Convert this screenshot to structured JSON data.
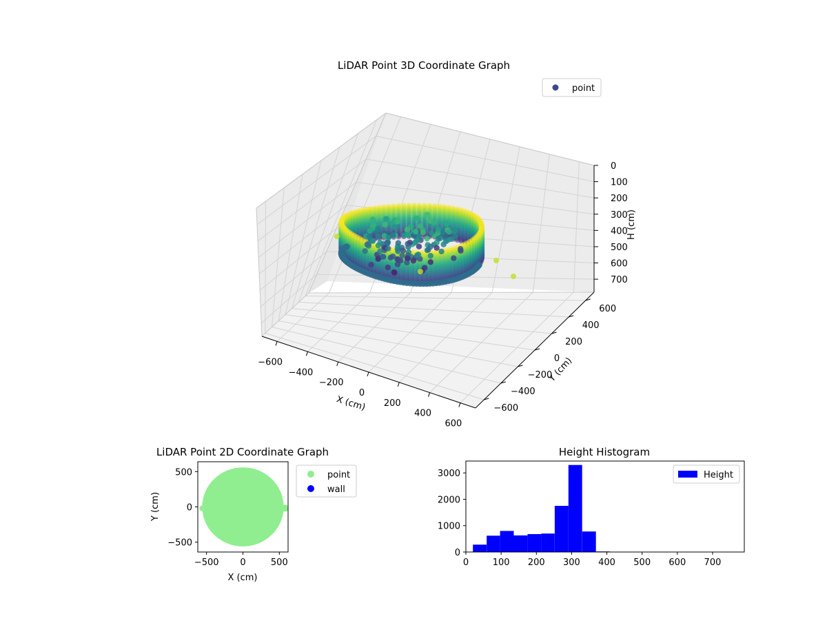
{
  "chart_data": [
    {
      "type": "scatter",
      "projection": "3d",
      "title": "LiDAR Point 3D Coordinate Graph",
      "xlabel": "X (cm)",
      "ylabel": "Y (cm)",
      "zlabel": "H (cm)",
      "xlim": [
        -650,
        650
      ],
      "ylim": [
        -650,
        650
      ],
      "zlim": [
        780,
        0
      ],
      "z_inverted": true,
      "x_ticks": [
        "−600",
        "−400",
        "−200",
        "0",
        "200",
        "400",
        "600"
      ],
      "y_ticks": [
        "−600",
        "−400",
        "−200",
        "0",
        "200",
        "400",
        "600"
      ],
      "z_ticks": [
        "0",
        "100",
        "200",
        "300",
        "400",
        "500",
        "600",
        "700"
      ],
      "colormap": "viridis",
      "legend": [
        {
          "name": "point",
          "color": "#3b4a8c"
        }
      ],
      "legend_position": "upper-right",
      "grid": true,
      "shape": "approximate cylindrical wall of points, radius about 560 cm, heights about 0–350 cm, with a central cluster and a few outliers"
    },
    {
      "type": "scatter",
      "title": "LiDAR Point 2D Coordinate Graph",
      "xlabel": "X (cm)",
      "ylabel": "Y (cm)",
      "xlim": [
        -620,
        620
      ],
      "ylim": [
        -640,
        640
      ],
      "x_ticks": [
        "−500",
        "0",
        "500"
      ],
      "y_ticks": [
        "−500",
        "0",
        "500"
      ],
      "series": [
        {
          "name": "point",
          "color": "#90ee90",
          "region": "filled disc",
          "radius_cm": 560
        },
        {
          "name": "wall",
          "color": "#0000ff"
        }
      ],
      "legend_position": "outside right",
      "grid": false
    },
    {
      "type": "bar",
      "title": "Height Histogram",
      "bin_edges": [
        20,
        59,
        97,
        136,
        175,
        214,
        252,
        291,
        330,
        369,
        408,
        446
      ],
      "values": [
        280,
        620,
        800,
        630,
        680,
        700,
        1750,
        3300,
        780,
        20,
        5
      ],
      "xlim": [
        0,
        790
      ],
      "ylim": [
        0,
        3450
      ],
      "x_ticks": [
        "0",
        "100",
        "200",
        "300",
        "400",
        "500",
        "600",
        "700"
      ],
      "y_ticks": [
        "0",
        "1000",
        "2000",
        "3000"
      ],
      "legend": [
        {
          "name": "Height",
          "color": "#0000ff"
        }
      ],
      "legend_position": "upper-right",
      "color": "#0000ff",
      "grid": false
    }
  ]
}
